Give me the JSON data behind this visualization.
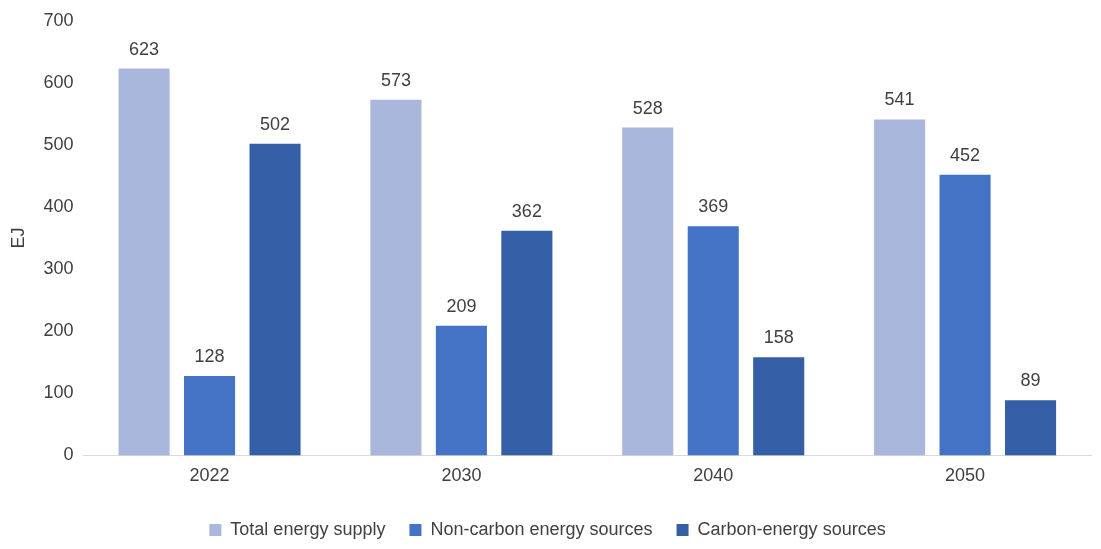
{
  "chart_data": {
    "type": "bar",
    "ylabel": "EJ",
    "categories": [
      "2022",
      "2030",
      "2040",
      "2050"
    ],
    "series": [
      {
        "name": "Total energy supply",
        "color": "#a9b7dc",
        "values": [
          623,
          573,
          528,
          541
        ]
      },
      {
        "name": "Non-carbon energy sources",
        "color": "#4472c4",
        "values": [
          128,
          209,
          369,
          452
        ]
      },
      {
        "name": "Carbon-energy sources",
        "color": "#345ea6",
        "values": [
          502,
          362,
          158,
          89
        ]
      }
    ],
    "ylim": [
      0,
      700
    ],
    "yticks": [
      0,
      100,
      200,
      300,
      400,
      500,
      600,
      700
    ],
    "grid": false,
    "legend": "bottom",
    "data_labels": true
  }
}
